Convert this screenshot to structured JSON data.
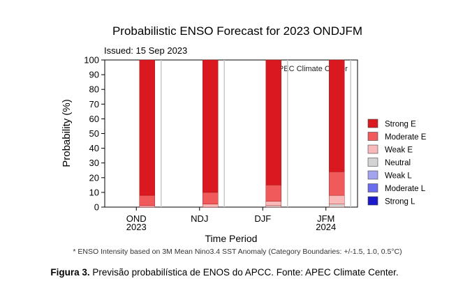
{
  "chart_data": {
    "type": "bar",
    "stacked": true,
    "title": "Probabilistic ENSO Forecast for 2023 ONDJFM",
    "issued": "Issued: 15 Sep 2023",
    "watermark": "© APEC Climate Center",
    "xlabel": "Time Period",
    "ylabel": "Probability (%)",
    "ylim": [
      0,
      100
    ],
    "yticks": [
      "0",
      "10",
      "20",
      "30",
      "40",
      "50",
      "60",
      "70",
      "80",
      "90",
      "100"
    ],
    "grid": false,
    "legend_position": "right",
    "categories": [
      {
        "line1": "OND",
        "line2": "2023"
      },
      {
        "line1": "NDJ",
        "line2": ""
      },
      {
        "line1": "DJF",
        "line2": ""
      },
      {
        "line1": "JFM",
        "line2": "2024"
      }
    ],
    "series": [
      {
        "name": "Strong E",
        "color": "#d9181f",
        "values": [
          92,
          90,
          85,
          76
        ]
      },
      {
        "name": "Moderate E",
        "color": "#f05a5a",
        "values": [
          7,
          8,
          11,
          16
        ]
      },
      {
        "name": "Weak E",
        "color": "#f9b9b9",
        "values": [
          1,
          2,
          3,
          6
        ]
      },
      {
        "name": "Neutral",
        "color": "#d3d3d3",
        "values": [
          0,
          0,
          1,
          2
        ]
      },
      {
        "name": "Weak L",
        "color": "#a3a3f0",
        "values": [
          0,
          0,
          0,
          0
        ]
      },
      {
        "name": "Moderate L",
        "color": "#6b6bf0",
        "values": [
          0,
          0,
          0,
          0
        ]
      },
      {
        "name": "Strong L",
        "color": "#1a1acc",
        "values": [
          0,
          0,
          0,
          0
        ]
      }
    ],
    "footnote": "* ENSO Intensity based on 3M Mean Nino3.4 SST Anomaly (Category Boundaries: +/-1.5, 1.0, 0.5°C)"
  },
  "caption": {
    "label": "Figura 3.",
    "text": " Previsão probabilística de ENOS do APCC. Fonte: APEC Climate Center."
  }
}
